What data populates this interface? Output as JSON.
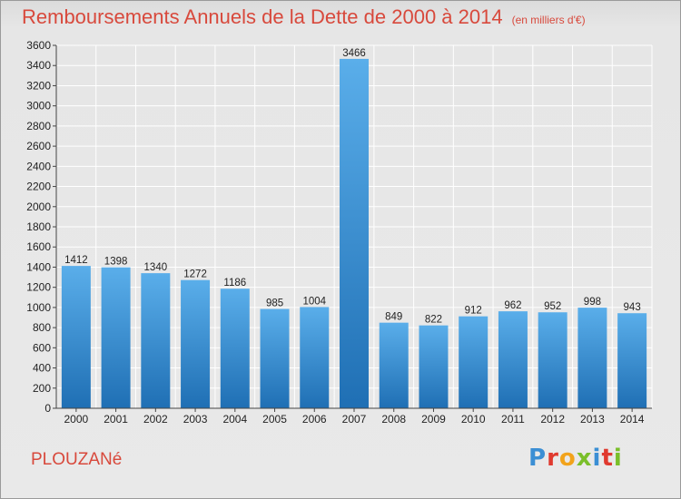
{
  "header": {
    "title": "Remboursements Annuels de la Dette de 2000 à 2014",
    "unit_note": "(en milliers d'€)"
  },
  "footer": {
    "commune": "PLOUZANé",
    "brand": "Proxiti",
    "brand_colors": [
      "#3b8fd4",
      "#e03a2f",
      "#f2a31b",
      "#7abf2a",
      "#3b8fd4",
      "#e03a2f",
      "#7abf2a"
    ]
  },
  "colors": {
    "bar_top": "#5aaeea",
    "bar_bottom": "#1f6fb4",
    "title": "#d8493c",
    "grid": "#ffffff"
  },
  "chart_data": {
    "type": "bar",
    "title": "Remboursements Annuels de la Dette de 2000 à 2014",
    "subtitle": "(en milliers d'€)",
    "categories": [
      "2000",
      "2001",
      "2002",
      "2003",
      "2004",
      "2005",
      "2006",
      "2007",
      "2008",
      "2009",
      "2010",
      "2011",
      "2012",
      "2013",
      "2014"
    ],
    "values": [
      1412,
      1398,
      1340,
      1272,
      1186,
      985,
      1004,
      3466,
      849,
      822,
      912,
      962,
      952,
      998,
      943
    ],
    "ylim": [
      0,
      3600
    ],
    "yticks": [
      0,
      200,
      400,
      600,
      800,
      1000,
      1200,
      1400,
      1600,
      1800,
      2000,
      2200,
      2400,
      2600,
      2800,
      3000,
      3200,
      3400,
      3600
    ],
    "grid": true,
    "legend": "none"
  }
}
